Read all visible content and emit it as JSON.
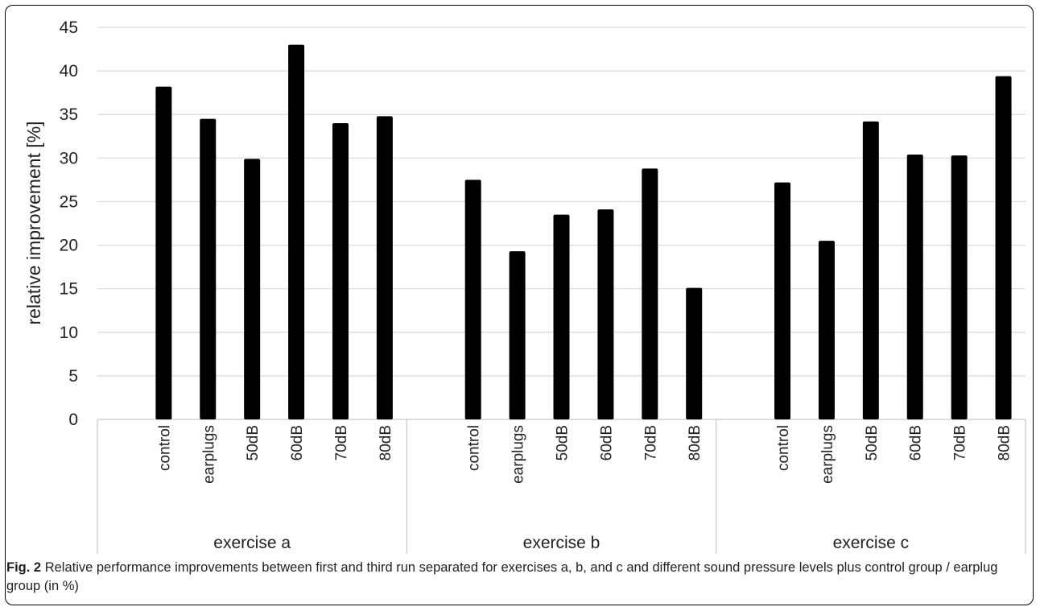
{
  "chart_data": {
    "type": "bar",
    "ylabel": "relative improvement [%]",
    "xlabel": "",
    "ylim": [
      0,
      45
    ],
    "yticks": [
      0,
      5,
      10,
      15,
      20,
      25,
      30,
      35,
      40,
      45
    ],
    "grid": true,
    "bar_color": "#000000",
    "grid_color": "#d9d9d9",
    "groups": [
      {
        "name": "exercise a",
        "categories": [
          "control",
          "earplugs",
          "50dB",
          "60dB",
          "70dB",
          "80dB"
        ],
        "values": [
          38.2,
          34.5,
          29.9,
          43.0,
          34.0,
          34.8
        ]
      },
      {
        "name": "exercise b",
        "categories": [
          "control",
          "earplugs",
          "50dB",
          "60dB",
          "70dB",
          "80dB"
        ],
        "values": [
          27.5,
          19.3,
          23.5,
          24.1,
          28.8,
          15.1
        ]
      },
      {
        "name": "exercise c",
        "categories": [
          "control",
          "earplugs",
          "50dB",
          "60dB",
          "70dB",
          "80dB"
        ],
        "values": [
          27.2,
          20.5,
          34.2,
          30.4,
          30.3,
          39.4
        ]
      }
    ]
  },
  "caption": {
    "label": "Fig. 2",
    "text": "Relative performance improvements between first and third run separated for exercises a, b, and c and different sound pressure levels plus control group / earplug group (in %)"
  }
}
